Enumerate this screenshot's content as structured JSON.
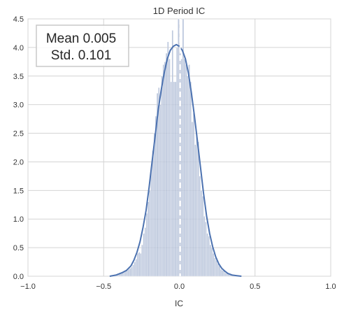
{
  "chart_data": {
    "type": "histogram",
    "title": "1D Period IC",
    "xlabel": "IC",
    "ylabel": "",
    "xlim": [
      -1.0,
      1.0
    ],
    "ylim": [
      0.0,
      4.5
    ],
    "xticks": [
      "-1.0",
      "-0.5",
      "0.0",
      "0.5",
      "1.0"
    ],
    "yticks": [
      "0.0",
      "0.5",
      "1.0",
      "1.5",
      "2.0",
      "2.5",
      "3.0",
      "3.5",
      "4.0",
      "4.5"
    ],
    "grid": true,
    "annotation": {
      "line1": "Mean 0.005",
      "line2": "Std. 0.101",
      "placement": "top-left"
    },
    "mean_line": 0.005,
    "colors": {
      "bar": "#a7b6d2",
      "kde": "#4c72b0",
      "mean_line": "#ffffff",
      "grid": "#d4d4d4"
    },
    "bins": {
      "x0": [
        -0.45,
        -0.44,
        -0.43,
        -0.42,
        -0.41,
        -0.4,
        -0.39,
        -0.38,
        -0.37,
        -0.36,
        -0.35,
        -0.34,
        -0.33,
        -0.32,
        -0.31,
        -0.3,
        -0.29,
        -0.28,
        -0.27,
        -0.26,
        -0.25,
        -0.24,
        -0.23,
        -0.22,
        -0.21,
        -0.2,
        -0.19,
        -0.18,
        -0.17,
        -0.16,
        -0.15,
        -0.14,
        -0.13,
        -0.12,
        -0.11,
        -0.1,
        -0.09,
        -0.08,
        -0.07,
        -0.06,
        -0.05,
        -0.04,
        -0.03,
        -0.02,
        -0.01,
        0.0,
        0.01,
        0.02,
        0.03,
        0.04,
        0.05,
        0.06,
        0.07,
        0.08,
        0.09,
        0.1,
        0.11,
        0.12,
        0.13,
        0.14,
        0.15,
        0.16,
        0.17,
        0.18,
        0.19,
        0.2,
        0.21,
        0.22,
        0.23,
        0.24,
        0.25,
        0.26,
        0.27,
        0.28,
        0.29,
        0.3,
        0.31,
        0.32,
        0.33,
        0.34,
        0.35,
        0.36,
        0.37,
        0.38,
        0.39
      ],
      "width": 0.01,
      "heights": [
        0.02,
        0.02,
        0.03,
        0.03,
        0.04,
        0.04,
        0.05,
        0.07,
        0.07,
        0.08,
        0.1,
        0.12,
        0.14,
        0.16,
        0.2,
        0.25,
        0.3,
        0.4,
        0.42,
        0.4,
        0.55,
        0.75,
        0.85,
        1.1,
        1.3,
        1.5,
        1.9,
        2.2,
        2.5,
        2.8,
        3.2,
        3.3,
        3.0,
        3.5,
        3.7,
        3.75,
        3.9,
        4.1,
        3.8,
        3.4,
        4.3,
        3.4,
        3.4,
        4.0,
        4.5,
        3.9,
        3.8,
        4.5,
        3.8,
        3.7,
        3.5,
        3.7,
        3.4,
        2.7,
        2.85,
        2.3,
        2.5,
        2.35,
        1.75,
        1.5,
        1.4,
        1.05,
        0.95,
        0.75,
        0.7,
        0.55,
        0.5,
        0.4,
        0.32,
        0.28,
        0.22,
        0.18,
        0.12,
        0.1,
        0.1,
        0.06,
        0.05,
        0.04,
        0.03,
        0.03,
        0.02,
        0.02,
        0.01,
        0.01,
        0.01
      ]
    },
    "kde": {
      "x": [
        -0.46,
        -0.42,
        -0.38,
        -0.35,
        -0.32,
        -0.3,
        -0.28,
        -0.26,
        -0.24,
        -0.22,
        -0.2,
        -0.18,
        -0.16,
        -0.14,
        -0.12,
        -0.1,
        -0.08,
        -0.06,
        -0.04,
        -0.02,
        0.0,
        0.02,
        0.04,
        0.06,
        0.08,
        0.1,
        0.12,
        0.14,
        0.16,
        0.18,
        0.2,
        0.22,
        0.24,
        0.26,
        0.28,
        0.3,
        0.32,
        0.35,
        0.38,
        0.41
      ],
      "y": [
        0.0,
        0.02,
        0.06,
        0.1,
        0.18,
        0.28,
        0.42,
        0.6,
        0.85,
        1.15,
        1.55,
        2.0,
        2.45,
        2.9,
        3.25,
        3.55,
        3.8,
        3.95,
        4.02,
        4.05,
        4.02,
        3.95,
        3.8,
        3.55,
        3.2,
        2.8,
        2.35,
        1.9,
        1.45,
        1.05,
        0.75,
        0.52,
        0.34,
        0.22,
        0.14,
        0.09,
        0.05,
        0.02,
        0.01,
        0.0
      ]
    }
  }
}
